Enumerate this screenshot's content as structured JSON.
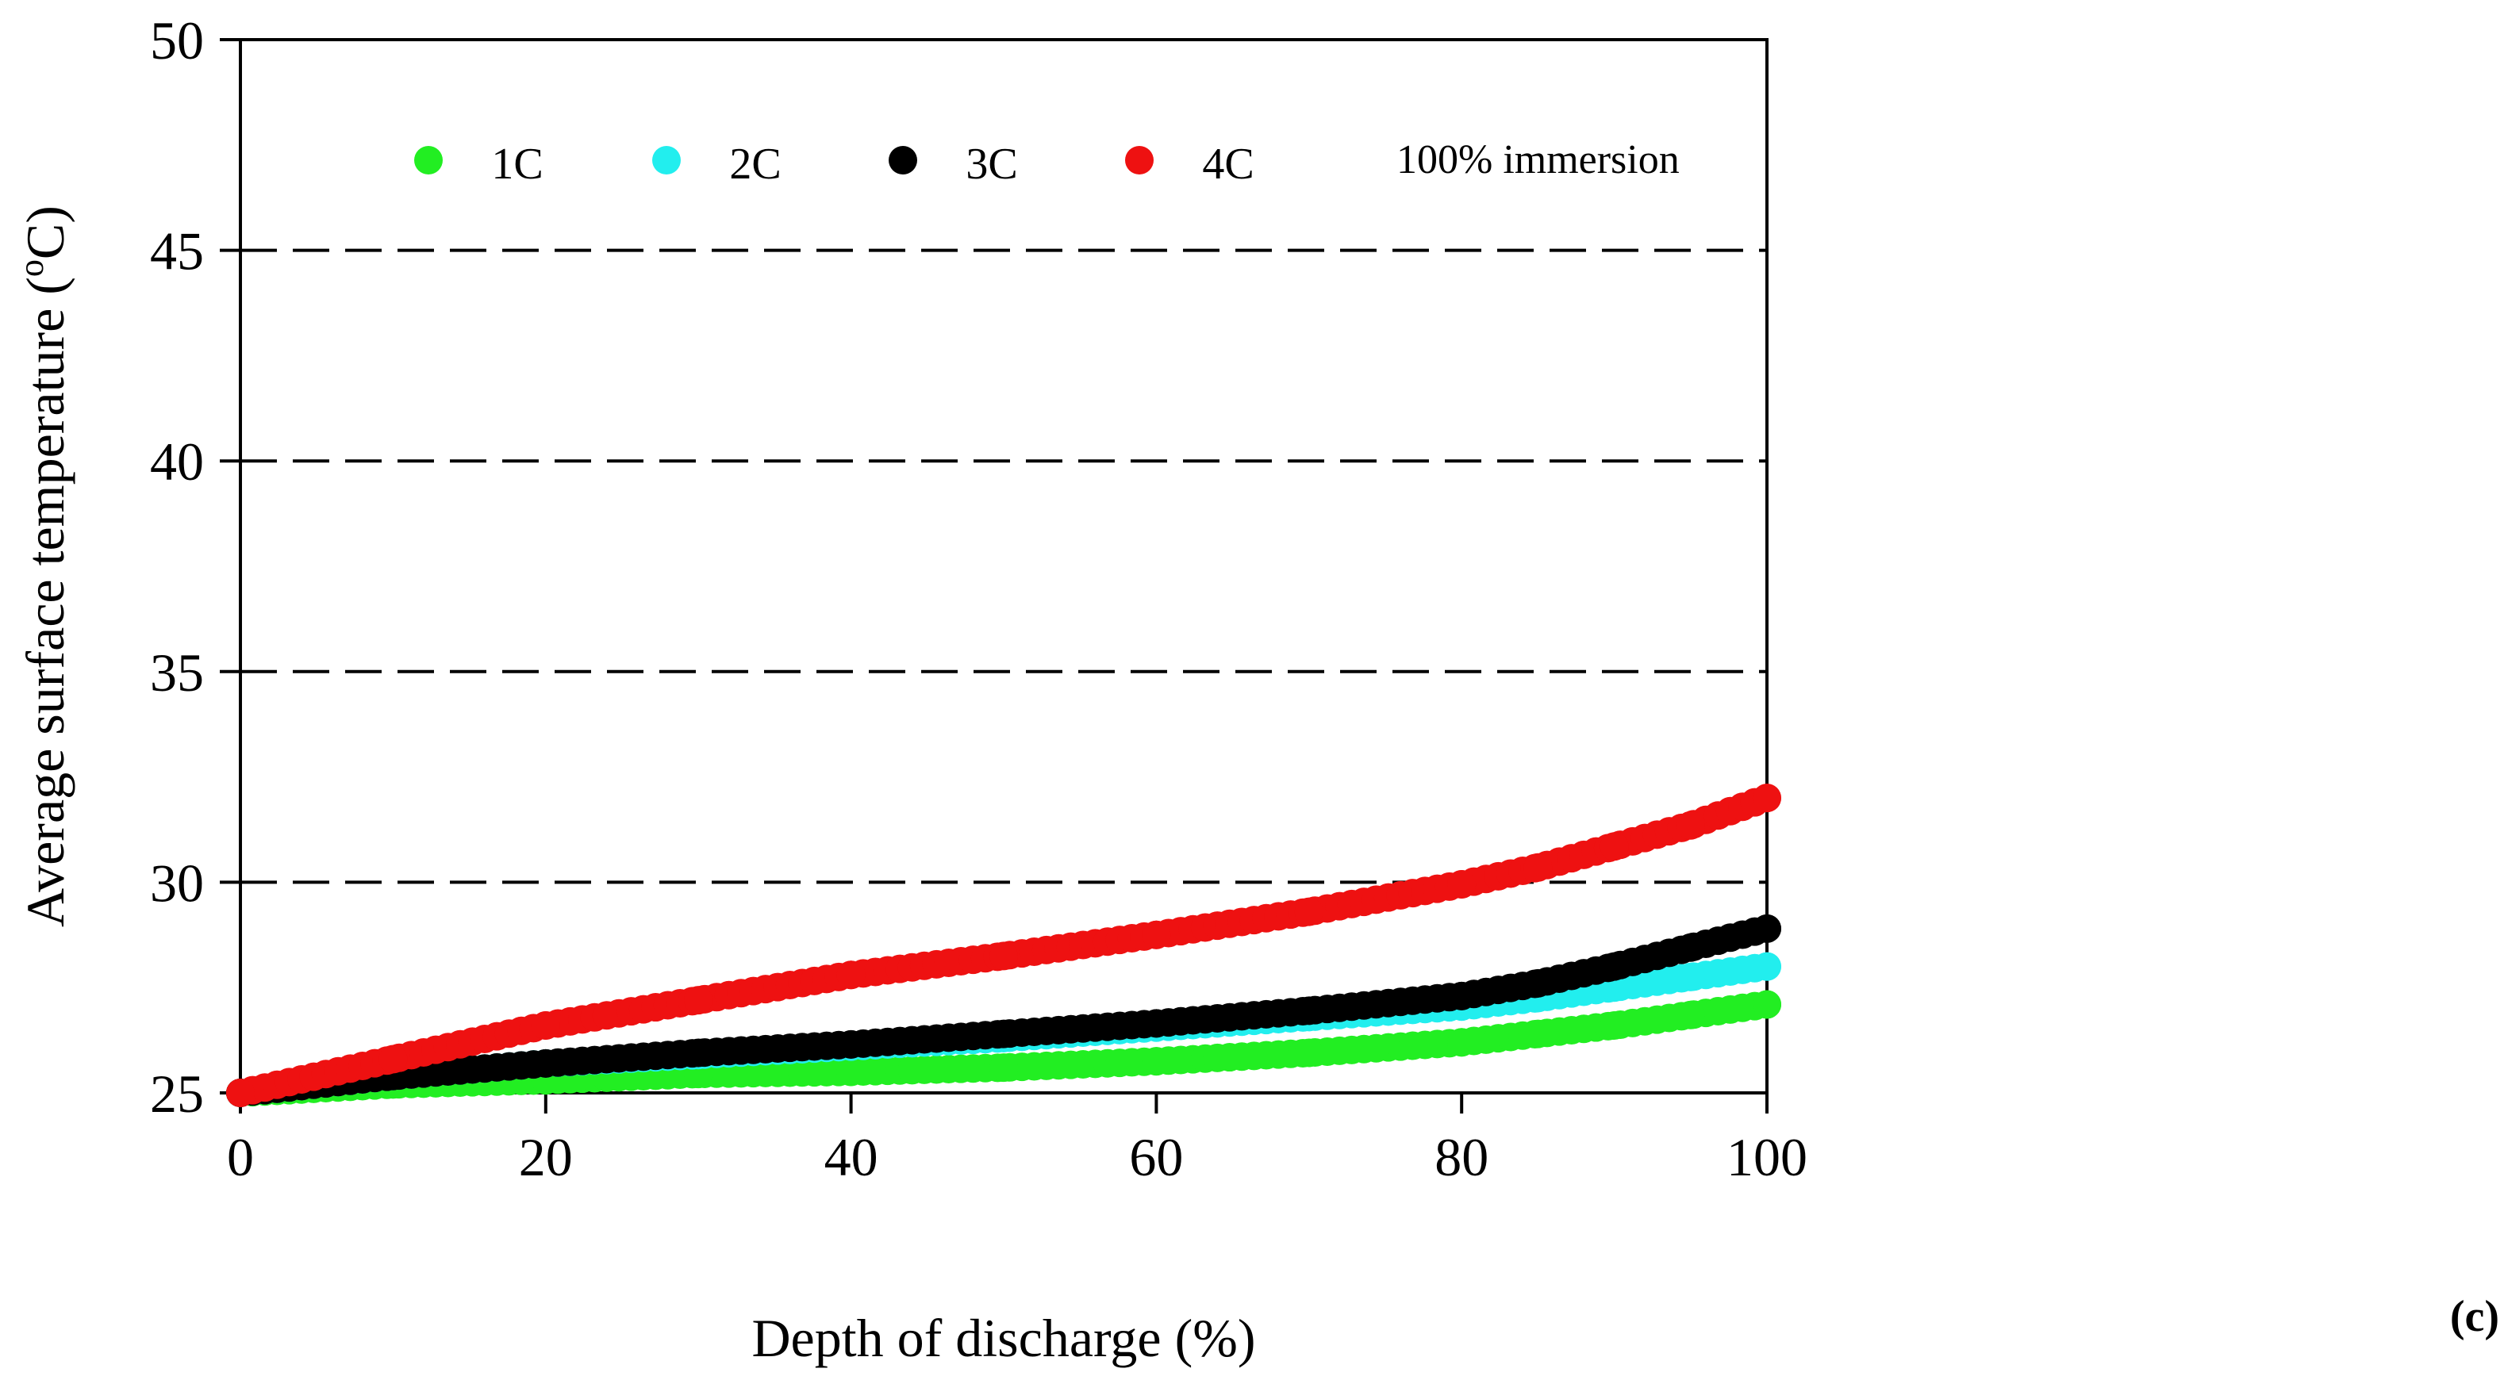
{
  "chart_data": {
    "type": "scatter",
    "title": "",
    "xlabel": "Depth of discharge (%)",
    "ylabel_main": "Average surface temperature (",
    "ylabel_sup": "o",
    "ylabel_tail": "C)",
    "xlim": [
      0,
      100
    ],
    "ylim": [
      25,
      50
    ],
    "xticks": [
      "0",
      "20",
      "40",
      "60",
      "80",
      "100"
    ],
    "yticks": [
      "25",
      "30",
      "35",
      "40",
      "45",
      "50"
    ],
    "grid": "horizontal dashed",
    "legend_position": "top",
    "annotation": "100% immersion",
    "panel_label": "(c)",
    "series": [
      {
        "name": "1C",
        "color": "#22ee22",
        "x": [
          0,
          10,
          20,
          30,
          40,
          50,
          60,
          70,
          80,
          85,
          90,
          95,
          100
        ],
        "y": [
          25.0,
          25.2,
          25.3,
          25.45,
          25.5,
          25.6,
          25.75,
          25.95,
          26.2,
          26.4,
          26.6,
          26.85,
          27.1
        ]
      },
      {
        "name": "2C",
        "color": "#22eeee",
        "x": [
          0,
          10,
          20,
          30,
          40,
          50,
          60,
          70,
          80,
          85,
          90,
          95,
          100
        ],
        "y": [
          25.0,
          25.4,
          25.7,
          25.9,
          26.1,
          26.3,
          26.55,
          26.8,
          27.05,
          27.25,
          27.5,
          27.75,
          28.0
        ]
      },
      {
        "name": "3C",
        "color": "#000000",
        "x": [
          0,
          10,
          20,
          30,
          40,
          50,
          60,
          70,
          80,
          85,
          90,
          95,
          100
        ],
        "y": [
          25.0,
          25.4,
          25.7,
          25.95,
          26.15,
          26.4,
          26.65,
          26.95,
          27.3,
          27.6,
          28.0,
          28.45,
          28.9
        ]
      },
      {
        "name": "4C",
        "color": "#ee1111",
        "x": [
          0,
          10,
          20,
          30,
          40,
          50,
          60,
          70,
          80,
          85,
          90,
          95,
          100
        ],
        "y": [
          25.0,
          25.8,
          26.6,
          27.2,
          27.8,
          28.25,
          28.75,
          29.3,
          29.95,
          30.35,
          30.85,
          31.35,
          32.0
        ]
      }
    ]
  }
}
